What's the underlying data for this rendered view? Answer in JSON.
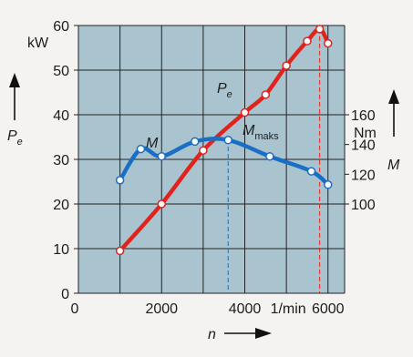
{
  "chart_data": {
    "type": "line",
    "x_axis": {
      "label": "n",
      "unit": "1/min",
      "range": [
        0,
        6400
      ],
      "ticks": [
        0,
        2000,
        4000,
        6000
      ],
      "tick_labels": [
        "0",
        "2000",
        "4000",
        "6000"
      ]
    },
    "y_left": {
      "label": "P",
      "label_sub": "e",
      "unit": "kW",
      "range": [
        0,
        60
      ],
      "ticks": [
        0,
        10,
        20,
        30,
        40,
        50,
        60
      ],
      "tick_labels": [
        "0",
        "10",
        "20",
        "30",
        "40",
        "50",
        "60"
      ]
    },
    "y_right": {
      "label": "M",
      "unit": "Nm",
      "range": [
        40,
        220
      ],
      "ticks": [
        100,
        120,
        140,
        160
      ],
      "tick_labels": [
        "100",
        "120",
        "140",
        "160"
      ]
    },
    "series": [
      {
        "name": "P",
        "name_sub": "e",
        "axis": "left",
        "color": "#e0231c",
        "x": [
          1000,
          2000,
          3000,
          4000,
          4500,
          5000,
          5500,
          5800,
          6000
        ],
        "y": [
          9.5,
          20,
          32,
          40.5,
          44.5,
          51,
          56.5,
          59.2,
          56
        ]
      },
      {
        "name": "M",
        "axis": "right",
        "color": "#1a6fc4",
        "x": [
          1000,
          1500,
          2000,
          2800,
          3600,
          4600,
          5600,
          6000
        ],
        "y": [
          116,
          137,
          132,
          142,
          143,
          132,
          122,
          113
        ]
      }
    ],
    "annotations": [
      {
        "text": "M",
        "sub": "maks",
        "x": 3600,
        "y_left": 34.5,
        "guide_color": "#1a6fc4"
      },
      {
        "x": 5800,
        "y_left": 59.2,
        "guide_color": "#e0231c"
      }
    ],
    "grid": true,
    "plot_background": "#aac4cf",
    "grid_color": "#222222"
  }
}
